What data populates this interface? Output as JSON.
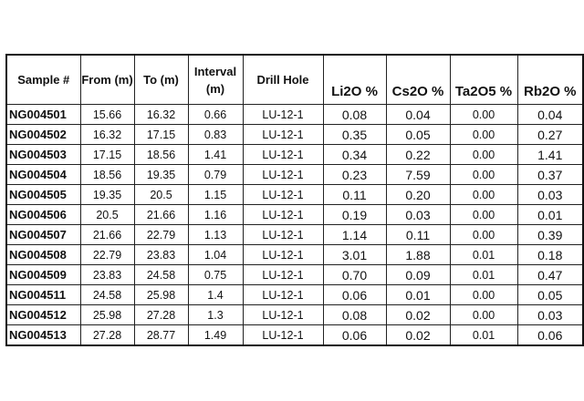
{
  "headers": {
    "sample": "Sample #",
    "from": "From (m)",
    "to": "To (m)",
    "interval": "Interval (m)",
    "drill_hole": "Drill Hole",
    "li2o": "Li2O %",
    "cs2o": "Cs2O %",
    "ta2o5": "Ta2O5 %",
    "rb2o": "Rb2O %"
  },
  "rows": [
    {
      "sample": "NG004501",
      "from": "15.66",
      "to": "16.32",
      "interval": "0.66",
      "hole": "LU-12-1",
      "li2o": "0.08",
      "cs2o": "0.04",
      "ta2o5": "0.00",
      "rb2o": "0.04"
    },
    {
      "sample": "NG004502",
      "from": "16.32",
      "to": "17.15",
      "interval": "0.83",
      "hole": "LU-12-1",
      "li2o": "0.35",
      "cs2o": "0.05",
      "ta2o5": "0.00",
      "rb2o": "0.27"
    },
    {
      "sample": "NG004503",
      "from": "17.15",
      "to": "18.56",
      "interval": "1.41",
      "hole": "LU-12-1",
      "li2o": "0.34",
      "cs2o": "0.22",
      "ta2o5": "0.00",
      "rb2o": "1.41"
    },
    {
      "sample": "NG004504",
      "from": "18.56",
      "to": "19.35",
      "interval": "0.79",
      "hole": "LU-12-1",
      "li2o": "0.23",
      "cs2o": "7.59",
      "ta2o5": "0.00",
      "rb2o": "0.37"
    },
    {
      "sample": "NG004505",
      "from": "19.35",
      "to": "20.5",
      "interval": "1.15",
      "hole": "LU-12-1",
      "li2o": "0.11",
      "cs2o": "0.20",
      "ta2o5": "0.00",
      "rb2o": "0.03"
    },
    {
      "sample": "NG004506",
      "from": "20.5",
      "to": "21.66",
      "interval": "1.16",
      "hole": "LU-12-1",
      "li2o": "0.19",
      "cs2o": "0.03",
      "ta2o5": "0.00",
      "rb2o": "0.01"
    },
    {
      "sample": "NG004507",
      "from": "21.66",
      "to": "22.79",
      "interval": "1.13",
      "hole": "LU-12-1",
      "li2o": "1.14",
      "cs2o": "0.11",
      "ta2o5": "0.00",
      "rb2o": "0.39"
    },
    {
      "sample": "NG004508",
      "from": "22.79",
      "to": "23.83",
      "interval": "1.04",
      "hole": "LU-12-1",
      "li2o": "3.01",
      "cs2o": "1.88",
      "ta2o5": "0.01",
      "rb2o": "0.18"
    },
    {
      "sample": "NG004509",
      "from": "23.83",
      "to": "24.58",
      "interval": "0.75",
      "hole": "LU-12-1",
      "li2o": "0.70",
      "cs2o": "0.09",
      "ta2o5": "0.01",
      "rb2o": "0.47"
    },
    {
      "sample": "NG004511",
      "from": "24.58",
      "to": "25.98",
      "interval": "1.4",
      "hole": "LU-12-1",
      "li2o": "0.06",
      "cs2o": "0.01",
      "ta2o5": "0.00",
      "rb2o": "0.05"
    },
    {
      "sample": "NG004512",
      "from": "25.98",
      "to": "27.28",
      "interval": "1.3",
      "hole": "LU-12-1",
      "li2o": "0.08",
      "cs2o": "0.02",
      "ta2o5": "0.00",
      "rb2o": "0.03"
    },
    {
      "sample": "NG004513",
      "from": "27.28",
      "to": "28.77",
      "interval": "1.49",
      "hole": "LU-12-1",
      "li2o": "0.06",
      "cs2o": "0.02",
      "ta2o5": "0.01",
      "rb2o": "0.06"
    }
  ]
}
